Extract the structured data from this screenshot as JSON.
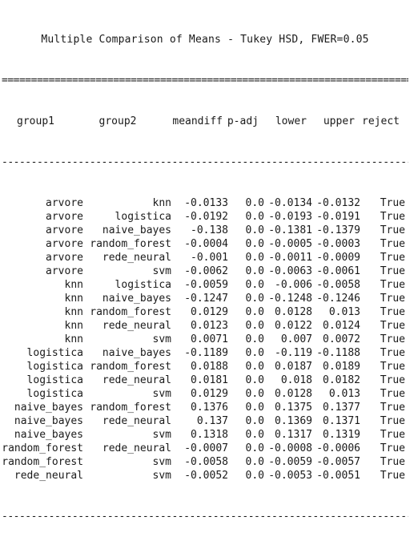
{
  "title": "Multiple Comparison of Means - Tukey HSD, FWER=0.05",
  "rule_top": "==================================================================================",
  "rule_mid": "----------------------------------------------------------------------------------",
  "rule_bottom": "----------------------------------------------------------------------------------",
  "columns": [
    "group1",
    "group2",
    "meandiff",
    "p-adj",
    "lower",
    "upper",
    "reject"
  ],
  "rows": [
    [
      "arvore",
      "knn",
      "-0.0133",
      "0.0",
      "-0.0134",
      "-0.0132",
      "True"
    ],
    [
      "arvore",
      "logistica",
      "-0.0192",
      "0.0",
      "-0.0193",
      "-0.0191",
      "True"
    ],
    [
      "arvore",
      "naive_bayes",
      "-0.138",
      "0.0",
      "-0.1381",
      "-0.1379",
      "True"
    ],
    [
      "arvore",
      "random_forest",
      "-0.0004",
      "0.0",
      "-0.0005",
      "-0.0003",
      "True"
    ],
    [
      "arvore",
      "rede_neural",
      "-0.001",
      "0.0",
      "-0.0011",
      "-0.0009",
      "True"
    ],
    [
      "arvore",
      "svm",
      "-0.0062",
      "0.0",
      "-0.0063",
      "-0.0061",
      "True"
    ],
    [
      "knn",
      "logistica",
      "-0.0059",
      "0.0",
      "-0.006",
      "-0.0058",
      "True"
    ],
    [
      "knn",
      "naive_bayes",
      "-0.1247",
      "0.0",
      "-0.1248",
      "-0.1246",
      "True"
    ],
    [
      "knn",
      "random_forest",
      "0.0129",
      "0.0",
      "0.0128",
      "0.013",
      "True"
    ],
    [
      "knn",
      "rede_neural",
      "0.0123",
      "0.0",
      "0.0122",
      "0.0124",
      "True"
    ],
    [
      "knn",
      "svm",
      "0.0071",
      "0.0",
      "0.007",
      "0.0072",
      "True"
    ],
    [
      "logistica",
      "naive_bayes",
      "-0.1189",
      "0.0",
      "-0.119",
      "-0.1188",
      "True"
    ],
    [
      "logistica",
      "random_forest",
      "0.0188",
      "0.0",
      "0.0187",
      "0.0189",
      "True"
    ],
    [
      "logistica",
      "rede_neural",
      "0.0181",
      "0.0",
      "0.018",
      "0.0182",
      "True"
    ],
    [
      "logistica",
      "svm",
      "0.0129",
      "0.0",
      "0.0128",
      "0.013",
      "True"
    ],
    [
      "naive_bayes",
      "random_forest",
      "0.1376",
      "0.0",
      "0.1375",
      "0.1377",
      "True"
    ],
    [
      "naive_bayes",
      "rede_neural",
      "0.137",
      "0.0",
      "0.1369",
      "0.1371",
      "True"
    ],
    [
      "naive_bayes",
      "svm",
      "0.1318",
      "0.0",
      "0.1317",
      "0.1319",
      "True"
    ],
    [
      "random_forest",
      "rede_neural",
      "-0.0007",
      "0.0",
      "-0.0008",
      "-0.0006",
      "True"
    ],
    [
      "random_forest",
      "svm",
      "-0.0058",
      "0.0",
      "-0.0059",
      "-0.0057",
      "True"
    ],
    [
      "rede_neural",
      "svm",
      "-0.0052",
      "0.0",
      "-0.0053",
      "-0.0051",
      "True"
    ]
  ]
}
